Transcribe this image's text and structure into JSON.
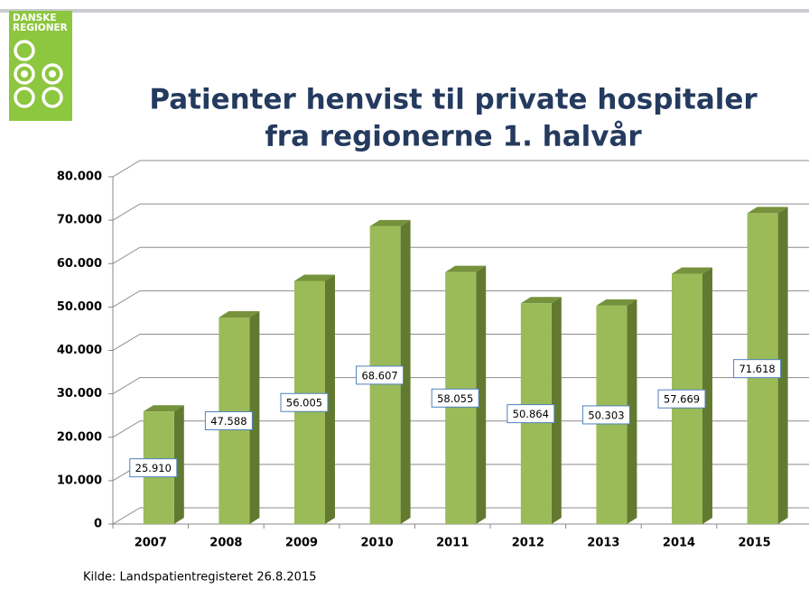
{
  "logo": {
    "lines": [
      "DANSKE",
      "REGIONER"
    ]
  },
  "chart_data": {
    "type": "bar3d",
    "title": [
      "Patienter henvist til private hospitaler",
      "fra regionerne 1. halvår"
    ],
    "categories": [
      "2007",
      "2008",
      "2009",
      "2010",
      "2011",
      "2012",
      "2013",
      "2014",
      "2015"
    ],
    "values": [
      25910,
      47588,
      56005,
      68607,
      58055,
      50864,
      50303,
      57669,
      71618
    ],
    "value_labels": [
      "25.910",
      "47.588",
      "56.005",
      "68.607",
      "58.055",
      "50.864",
      "50.303",
      "57.669",
      "71.618"
    ],
    "color": "#9bbb59",
    "ylim": [
      0,
      80000
    ],
    "yticks": [
      0,
      {
        "value": 10000,
        "label": "10.000"
      },
      {
        "value": 20000,
        "label": "20.000"
      },
      {
        "value": 30000,
        "label": "30.000"
      },
      {
        "value": 40000,
        "label": "40.000"
      },
      {
        "value": 50000,
        "label": "50.000"
      },
      {
        "value": 60000,
        "label": "60.000"
      },
      {
        "value": 70000,
        "label": "70.000"
      },
      {
        "value": 80000,
        "label": "80.000"
      }
    ],
    "grid": true,
    "source": "Kilde:  Landspatientregisteret   26.8.2015"
  }
}
